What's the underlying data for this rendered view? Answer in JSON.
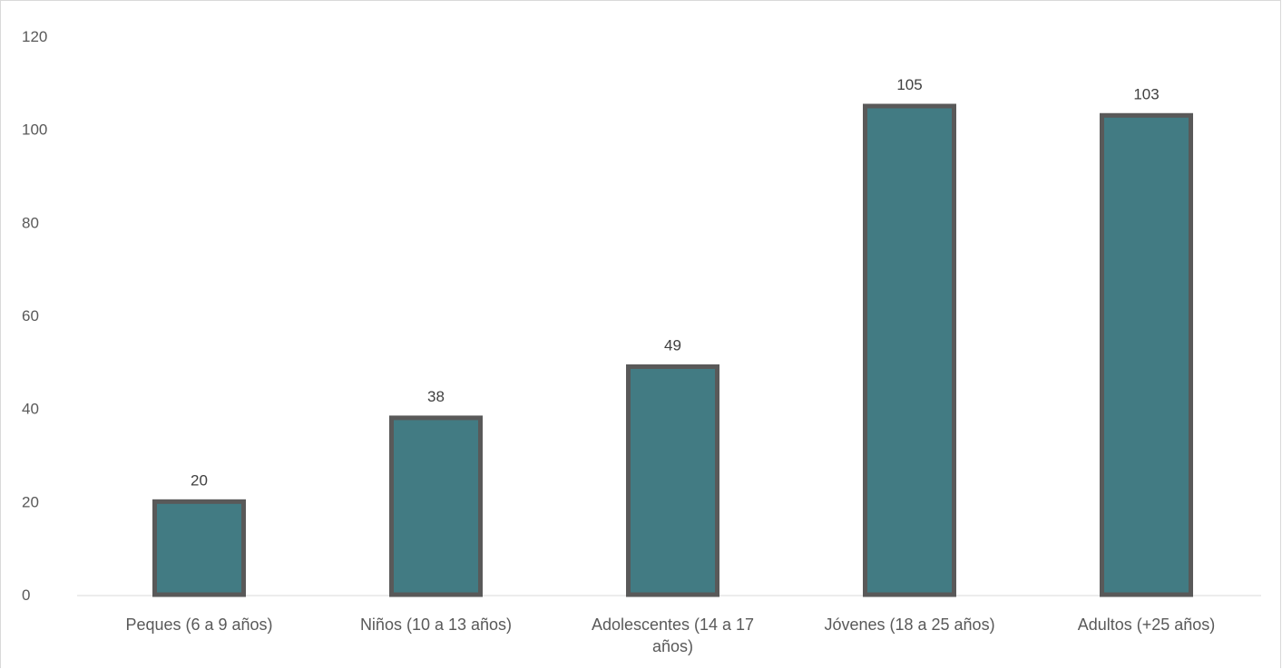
{
  "chart_data": {
    "type": "bar",
    "categories": [
      "Peques (6 a 9 años)",
      "Niños (10 a 13 años)",
      "Adolescentes (14 a 17 años)",
      "Jóvenes (18 a 25 años)",
      "Adultos (+25 años)"
    ],
    "values": [
      20,
      38,
      49,
      105,
      103
    ],
    "data_labels": [
      "20",
      "38",
      "49",
      "105",
      "103"
    ],
    "yticks": [
      0,
      20,
      40,
      60,
      80,
      100,
      120
    ],
    "ylim": [
      0,
      120
    ],
    "title": "",
    "xlabel": "",
    "ylabel": "",
    "grid": false,
    "legend": "none",
    "colors": {
      "bar_fill": "#427b83",
      "bar_stroke": "#595959",
      "axis_line": "#d9d9d9",
      "tick_text": "#595959"
    }
  }
}
